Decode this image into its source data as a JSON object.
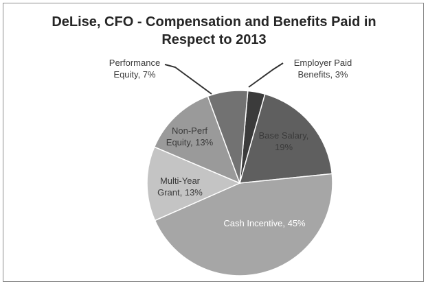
{
  "chart_data": {
    "type": "pie",
    "title": [
      "DeLise, CFO - Compensation and Benefits Paid in",
      "Respect to 2013"
    ],
    "slices": [
      {
        "label": [
          "Employer Paid",
          "Benefits, 3%"
        ],
        "value": 3,
        "color": "#3b3b3b"
      },
      {
        "label": [
          "Base Salary,",
          "19%"
        ],
        "value": 19,
        "color": "#5f5f5f"
      },
      {
        "label": [
          "Cash Incentive, 45%"
        ],
        "value": 45,
        "color": "#a6a6a6"
      },
      {
        "label": [
          "Multi-Year",
          "Grant, 13%"
        ],
        "value": 13,
        "color": "#c4c4c4"
      },
      {
        "label": [
          "Non-Perf",
          "Equity, 13%"
        ],
        "value": 13,
        "color": "#9a9a9a"
      },
      {
        "label": [
          "Performance",
          "Equity, 7%"
        ],
        "value": 7,
        "color": "#727272"
      }
    ]
  }
}
